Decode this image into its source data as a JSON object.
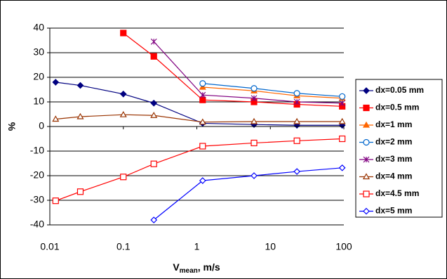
{
  "chart_data": {
    "type": "line",
    "y_label": "%",
    "x_label": [
      "V",
      "mean",
      ", m/s"
    ],
    "x_log": true,
    "grid": true,
    "legend": "right",
    "xlim": [
      0.01,
      100
    ],
    "xticks": [
      0.01,
      0.1,
      1,
      10,
      100
    ],
    "ylim": [
      -40,
      40
    ],
    "yticks": [
      -40,
      -30,
      -20,
      -10,
      0,
      10,
      20,
      30,
      40
    ],
    "x": [
      0.012,
      0.026,
      0.1,
      0.26,
      1.2,
      6,
      23,
      95
    ],
    "series": [
      {
        "name": "dx=0.05 mm",
        "color": "#000080",
        "marker": "diamond",
        "filled": true,
        "values": [
          18,
          16.7,
          13.2,
          9.5,
          1.3,
          0.8,
          0.5,
          0.5
        ]
      },
      {
        "name": "dx=0.5 mm",
        "color": "#ff0000",
        "marker": "square",
        "filled": true,
        "values": [
          null,
          null,
          38,
          28.5,
          10.8,
          10,
          9,
          8.2
        ]
      },
      {
        "name": "dx=1 mm",
        "color": "#ff6600",
        "marker": "triangle",
        "filled": true,
        "values": [
          null,
          null,
          null,
          null,
          16,
          14.5,
          12.5,
          11.5
        ]
      },
      {
        "name": "dx=2 mm",
        "color": "#0066cc",
        "marker": "circle",
        "filled": false,
        "values": [
          null,
          null,
          null,
          null,
          17.5,
          15.5,
          13.5,
          12.2
        ]
      },
      {
        "name": "dx=3 mm",
        "color": "#800080",
        "marker": "star",
        "filled": false,
        "values": [
          null,
          null,
          null,
          34.5,
          12.8,
          11.5,
          10,
          9.5
        ]
      },
      {
        "name": "dx=4 mm",
        "color": "#993300",
        "marker": "triangle",
        "filled": false,
        "values": [
          3,
          4,
          4.8,
          4.5,
          1.8,
          2,
          2,
          2
        ]
      },
      {
        "name": "dx=4.5 mm",
        "color": "#ff0000",
        "marker": "square",
        "filled": false,
        "values": [
          -30.2,
          -26.5,
          -20.5,
          -15.2,
          -8,
          -6.7,
          -5.8,
          -5
        ]
      },
      {
        "name": "dx=5 mm",
        "color": "#0000ff",
        "marker": "diamond",
        "filled": false,
        "values": [
          null,
          null,
          null,
          -38,
          -22,
          -20,
          -18.3,
          -16.8
        ]
      }
    ]
  }
}
